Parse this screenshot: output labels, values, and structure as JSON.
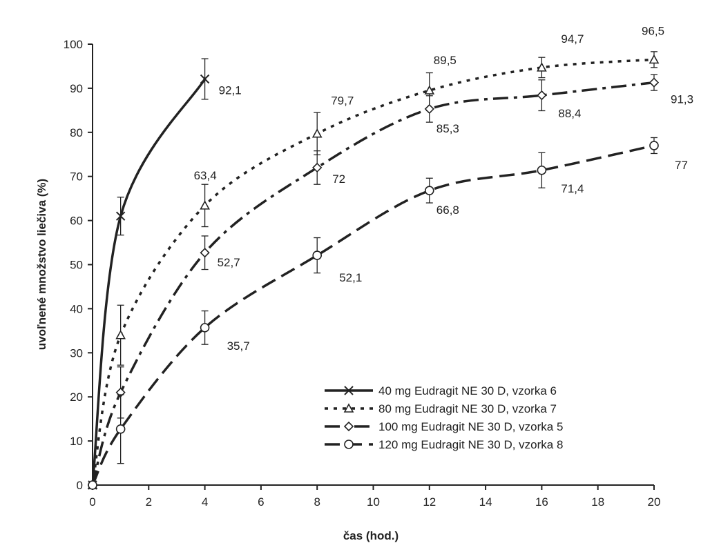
{
  "chart_data": {
    "type": "line",
    "title": "",
    "xlabel": "čas (hod.)",
    "ylabel": "uvoľnené množstvo liečiva (%)",
    "xlim": [
      0,
      20
    ],
    "ylim": [
      0,
      100
    ],
    "xticks": [
      "0",
      "2",
      "4",
      "6",
      "8",
      "10",
      "12",
      "14",
      "16",
      "18",
      "20"
    ],
    "yticks": [
      "0",
      "10",
      "20",
      "30",
      "40",
      "50",
      "60",
      "70",
      "80",
      "90",
      "100"
    ],
    "grid": false,
    "legend_position": "bottom-right",
    "series": [
      {
        "name": "40 mg Eudragit NE 30 D, vzorka 6",
        "marker": "x",
        "line_style": "solid",
        "x": [
          0,
          1,
          4
        ],
        "y": [
          0,
          61,
          92.1
        ],
        "error": [
          0,
          4.3,
          4.6
        ],
        "labels": [
          "",
          "",
          "92,1"
        ]
      },
      {
        "name": "80 mg Eudragit NE 30 D, vzorka 7",
        "marker": "triangle",
        "line_style": "dotted",
        "x": [
          0,
          1,
          4,
          8,
          12,
          16,
          20
        ],
        "y": [
          0,
          34,
          63.4,
          79.7,
          89.5,
          94.7,
          96.5
        ],
        "error": [
          0,
          6.8,
          4.8,
          4.8,
          4.0,
          2.3,
          1.8
        ],
        "labels": [
          "",
          "",
          "63,4",
          "79,7",
          "89,5",
          "94,7",
          "96,5"
        ]
      },
      {
        "name": "100 mg Eudragit NE 30 D, vzorka 5",
        "marker": "diamond",
        "line_style": "dashdot",
        "x": [
          0,
          1,
          4,
          8,
          12,
          16,
          20
        ],
        "y": [
          0,
          21,
          52.7,
          72,
          85.3,
          88.4,
          91.3
        ],
        "error": [
          0,
          5.8,
          3.8,
          3.8,
          3.0,
          3.5,
          1.8
        ],
        "labels": [
          "",
          "",
          "52,7",
          "72",
          "85,3",
          "88,4",
          "91,3"
        ]
      },
      {
        "name": "120 mg Eudragit NE 30 D, vzorka 8",
        "marker": "circle",
        "line_style": "dashed",
        "x": [
          0,
          1,
          4,
          8,
          12,
          16,
          20
        ],
        "y": [
          0,
          12.7,
          35.7,
          52.1,
          66.8,
          71.4,
          77
        ],
        "error": [
          0,
          7.8,
          3.8,
          4.0,
          2.8,
          4.0,
          1.8
        ],
        "labels": [
          "",
          "",
          "35,7",
          "52,1",
          "66,8",
          "71,4",
          "77"
        ]
      }
    ]
  }
}
